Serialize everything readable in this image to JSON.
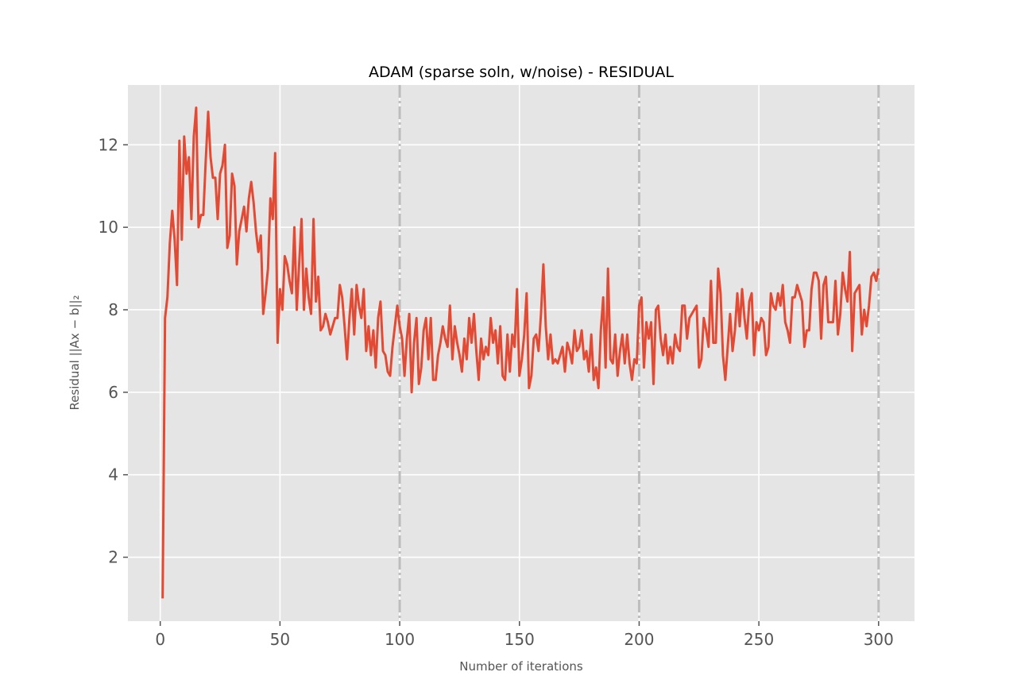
{
  "chart_data": {
    "type": "line",
    "title": "ADAM (sparse soln, w/noise) - RESIDUAL",
    "xlabel": "Number of iterations",
    "ylabel": "Residual ||Ax − b||₂",
    "xlim": [
      -13.5,
      315
    ],
    "ylim": [
      0.45,
      13.45
    ],
    "xticks": [
      0,
      50,
      100,
      150,
      200,
      250,
      300
    ],
    "yticks": [
      2,
      4,
      6,
      8,
      10,
      12
    ],
    "grid": true,
    "legend": "none",
    "vlines": [
      100,
      200,
      300
    ],
    "colors": {
      "background": "#e5e5e5",
      "grid": "#ffffff",
      "series": "#e24a33",
      "vline": "#bdbdbd"
    },
    "series": [
      {
        "color": "#e24a33",
        "x": [
          1,
          2,
          3,
          4,
          5,
          6,
          7,
          8,
          9,
          10,
          11,
          12,
          13,
          14,
          15,
          16,
          17,
          18,
          19,
          20,
          21,
          22,
          23,
          24,
          25,
          26,
          27,
          28,
          29,
          30,
          31,
          32,
          33,
          34,
          35,
          36,
          37,
          38,
          39,
          40,
          41,
          42,
          43,
          44,
          45,
          46,
          47,
          48,
          49,
          50,
          51,
          52,
          53,
          54,
          55,
          56,
          57,
          58,
          59,
          60,
          61,
          62,
          63,
          64,
          65,
          66,
          67,
          68,
          69,
          70,
          71,
          72,
          73,
          74,
          75,
          76,
          77,
          78,
          79,
          80,
          81,
          82,
          83,
          84,
          85,
          86,
          87,
          88,
          89,
          90,
          91,
          92,
          93,
          94,
          95,
          96,
          97,
          98,
          99,
          100,
          101,
          102,
          103,
          104,
          105,
          106,
          107,
          108,
          109,
          110,
          111,
          112,
          113,
          114,
          115,
          116,
          117,
          118,
          119,
          120,
          121,
          122,
          123,
          124,
          125,
          126,
          127,
          128,
          129,
          130,
          131,
          132,
          133,
          134,
          135,
          136,
          137,
          138,
          139,
          140,
          141,
          142,
          143,
          144,
          145,
          146,
          147,
          148,
          149,
          150,
          151,
          152,
          153,
          154,
          155,
          156,
          157,
          158,
          159,
          160,
          161,
          162,
          163,
          164,
          165,
          166,
          167,
          168,
          169,
          170,
          171,
          172,
          173,
          174,
          175,
          176,
          177,
          178,
          179,
          180,
          181,
          182,
          183,
          184,
          185,
          186,
          187,
          188,
          189,
          190,
          191,
          192,
          193,
          194,
          195,
          196,
          197,
          198,
          199,
          200,
          201,
          202,
          203,
          204,
          205,
          206,
          207,
          208,
          209,
          210,
          211,
          212,
          213,
          214,
          215,
          216,
          217,
          218,
          219,
          220,
          221,
          222,
          223,
          224,
          225,
          226,
          227,
          228,
          229,
          230,
          231,
          232,
          233,
          234,
          235,
          236,
          237,
          238,
          239,
          240,
          241,
          242,
          243,
          244,
          245,
          246,
          247,
          248,
          249,
          250,
          251,
          252,
          253,
          254,
          255,
          256,
          257,
          258,
          259,
          260,
          261,
          262,
          263,
          264,
          265,
          266,
          267,
          268,
          269,
          270,
          271,
          272,
          273,
          274,
          275,
          276,
          277,
          278,
          279,
          280,
          281,
          282,
          283,
          284,
          285,
          286,
          287,
          288,
          289,
          290,
          291,
          292,
          293,
          294,
          295,
          296,
          297,
          298,
          299,
          300
        ],
        "y": [
          1.0,
          7.8,
          8.3,
          9.6,
          10.4,
          9.7,
          8.6,
          12.1,
          9.7,
          12.2,
          11.3,
          11.7,
          10.2,
          12.2,
          12.9,
          10.0,
          10.3,
          10.3,
          11.6,
          12.8,
          11.7,
          11.2,
          11.2,
          10.2,
          11.3,
          11.5,
          12.0,
          9.5,
          9.8,
          11.3,
          11.0,
          9.1,
          9.9,
          10.2,
          10.5,
          9.9,
          10.7,
          11.1,
          10.6,
          9.9,
          9.4,
          9.8,
          7.9,
          8.4,
          9.0,
          10.7,
          10.2,
          11.8,
          7.2,
          8.5,
          8.0,
          9.3,
          9.1,
          8.7,
          8.4,
          10.0,
          8.0,
          9.1,
          10.2,
          8.0,
          9.0,
          8.3,
          7.9,
          10.2,
          8.2,
          8.8,
          7.5,
          7.6,
          7.9,
          7.7,
          7.4,
          7.6,
          7.8,
          7.8,
          8.6,
          8.3,
          7.6,
          6.8,
          7.8,
          8.5,
          7.4,
          8.6,
          8.1,
          7.8,
          8.5,
          7.0,
          7.6,
          6.9,
          7.5,
          6.6,
          7.8,
          8.2,
          7.0,
          6.9,
          6.5,
          6.4,
          7.1,
          7.6,
          8.1,
          7.6,
          7.3,
          6.4,
          7.3,
          7.9,
          6.0,
          7.2,
          7.8,
          6.2,
          6.6,
          7.5,
          7.8,
          6.8,
          7.8,
          6.3,
          6.3,
          6.9,
          7.2,
          7.6,
          7.3,
          7.1,
          8.1,
          6.8,
          7.6,
          7.2,
          6.9,
          6.5,
          7.3,
          6.8,
          7.8,
          7.2,
          7.9,
          7.0,
          6.3,
          7.3,
          6.8,
          7.1,
          6.9,
          7.8,
          7.2,
          7.5,
          6.7,
          7.6,
          6.4,
          6.3,
          7.4,
          6.5,
          7.4,
          7.1,
          8.5,
          6.4,
          6.8,
          7.4,
          8.4,
          6.1,
          6.4,
          7.3,
          7.4,
          7.0,
          7.9,
          9.1,
          7.6,
          6.8,
          7.4,
          6.7,
          6.8,
          6.7,
          6.9,
          7.1,
          6.5,
          7.2,
          7.0,
          6.7,
          7.5,
          7.0,
          7.1,
          7.5,
          6.8,
          7.0,
          6.5,
          7.4,
          6.3,
          6.6,
          6.1,
          7.5,
          8.3,
          6.6,
          9.0,
          6.8,
          6.7,
          7.4,
          6.4,
          7.0,
          7.4,
          6.7,
          7.4,
          6.7,
          6.3,
          6.8,
          6.7,
          8.1,
          8.3,
          6.6,
          7.7,
          7.3,
          7.7,
          6.2,
          8.0,
          8.1,
          7.3,
          6.9,
          7.4,
          6.7,
          7.1,
          6.7,
          7.4,
          7.1,
          7.0,
          8.1,
          8.1,
          7.3,
          7.8,
          7.9,
          8.0,
          8.1,
          6.6,
          6.8,
          7.8,
          7.5,
          7.1,
          8.7,
          7.2,
          7.2,
          9.0,
          8.4,
          6.9,
          6.3,
          7.1,
          7.9,
          7.0,
          7.5,
          8.4,
          7.6,
          8.5,
          7.8,
          7.3,
          8.2,
          8.4,
          6.9,
          7.7,
          7.5,
          7.8,
          7.7,
          6.9,
          7.1,
          8.4,
          8.1,
          8.0,
          8.4,
          8.1,
          8.6,
          7.7,
          7.5,
          7.2,
          8.3,
          8.3,
          8.6,
          8.4,
          8.2,
          7.1,
          7.5,
          7.5,
          8.5,
          8.9,
          8.9,
          8.7,
          7.3,
          8.6,
          8.8,
          7.7,
          7.7,
          7.7,
          8.7,
          7.4,
          7.9,
          8.9,
          8.5,
          8.2,
          9.4,
          7.0,
          8.4,
          8.5,
          8.6,
          7.4,
          8.0,
          7.6,
          8.1,
          8.8,
          8.9,
          8.7,
          9.0
        ]
      }
    ]
  }
}
